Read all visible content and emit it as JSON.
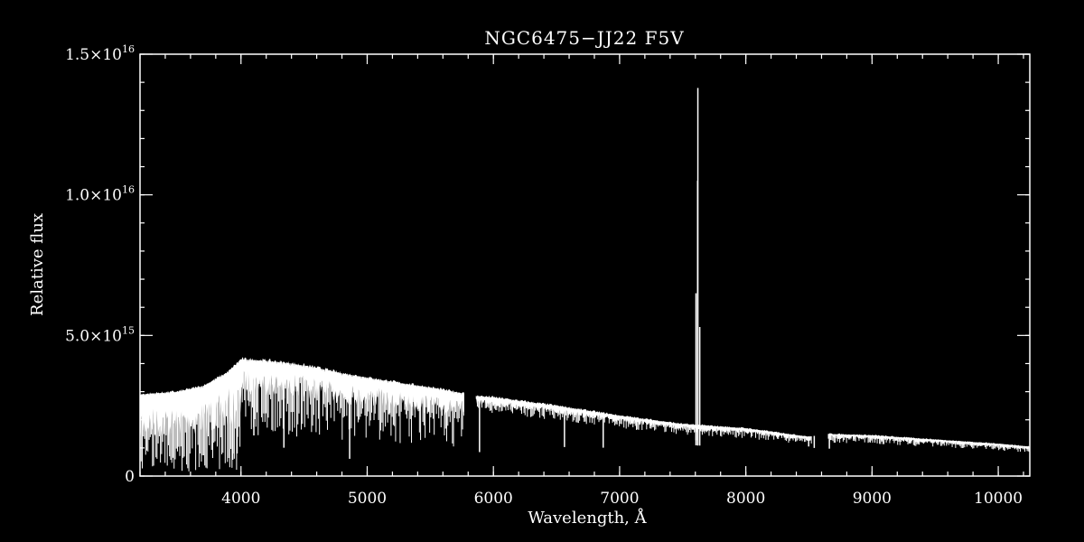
{
  "chart_data": {
    "type": "line",
    "title": "NGC6475−JJ22  F5V",
    "xlabel": "Wavelength, Å",
    "ylabel": "Relative flux",
    "xlim": [
      3200,
      10250
    ],
    "ylim": [
      0,
      1.5e+16
    ],
    "x_ticks": [
      {
        "value": 4000,
        "label": "4000"
      },
      {
        "value": 5000,
        "label": "5000"
      },
      {
        "value": 6000,
        "label": "6000"
      },
      {
        "value": 7000,
        "label": "7000"
      },
      {
        "value": 8000,
        "label": "8000"
      },
      {
        "value": 9000,
        "label": "9000"
      },
      {
        "value": 10000,
        "label": "10000"
      }
    ],
    "y_ticks": [
      {
        "value": 0,
        "mantissa": "0",
        "exponent": ""
      },
      {
        "value": 5000000000000000.0,
        "mantissa": "5.0×10",
        "exponent": "15"
      },
      {
        "value": 1e+16,
        "mantissa": "1.0×10",
        "exponent": "16"
      },
      {
        "value": 1.5e+16,
        "mantissa": "1.5×10",
        "exponent": "16"
      }
    ],
    "y_minor_step": 1000000000000000.0,
    "x_minor_step": 200,
    "gaps": [
      [
        5770,
        5860
      ],
      [
        8520,
        8650
      ]
    ],
    "series": [
      {
        "color": "#ffffff",
        "continuum": [
          [
            3200,
            2900000000000000.0
          ],
          [
            3500,
            3000000000000000.0
          ],
          [
            3700,
            3200000000000000.0
          ],
          [
            3900,
            3700000000000000.0
          ],
          [
            4000,
            4150000000000000.0
          ],
          [
            4200,
            4100000000000000.0
          ],
          [
            4400,
            4000000000000000.0
          ],
          [
            4600,
            3850000000000000.0
          ],
          [
            4800,
            3650000000000000.0
          ],
          [
            5000,
            3500000000000000.0
          ],
          [
            5200,
            3350000000000000.0
          ],
          [
            5500,
            3150000000000000.0
          ],
          [
            5750,
            2950000000000000.0
          ],
          [
            5860,
            2850000000000000.0
          ],
          [
            6000,
            2800000000000000.0
          ],
          [
            6500,
            2500000000000000.0
          ],
          [
            7000,
            2150000000000000.0
          ],
          [
            7500,
            1850000000000000.0
          ],
          [
            8000,
            1700000000000000.0
          ],
          [
            8500,
            1400000000000000.0
          ],
          [
            8650,
            1500000000000000.0
          ],
          [
            9000,
            1450000000000000.0
          ],
          [
            9500,
            1300000000000000.0
          ],
          [
            10000,
            1150000000000000.0
          ],
          [
            10250,
            1050000000000000.0
          ]
        ],
        "absorption_lines": [
          {
            "x": 3934,
            "depth": 0.85
          },
          {
            "x": 3969,
            "depth": 0.8
          },
          {
            "x": 4102,
            "depth": 0.65
          },
          {
            "x": 4340,
            "depth": 0.75
          },
          {
            "x": 4861,
            "depth": 0.83
          },
          {
            "x": 5175,
            "depth": 0.35
          },
          {
            "x": 5890,
            "depth": 0.7
          },
          {
            "x": 6563,
            "depth": 0.58
          },
          {
            "x": 6870,
            "depth": 0.55
          },
          {
            "x": 7605,
            "depth": 0.3
          },
          {
            "x": 8498,
            "depth": 0.25
          },
          {
            "x": 8542,
            "depth": 0.3
          },
          {
            "x": 8662,
            "depth": 0.35
          },
          {
            "x": 9300,
            "depth": 0.15
          },
          {
            "x": 10050,
            "depth": 0.2
          }
        ],
        "emission_spikes": [
          {
            "x": 7605,
            "value": 6500000000000000.0
          },
          {
            "x": 7620,
            "value": 1.38e+16
          },
          {
            "x": 7618,
            "value": 1.05e+16
          },
          {
            "x": 7635,
            "value": 5300000000000000.0
          }
        ]
      }
    ]
  }
}
